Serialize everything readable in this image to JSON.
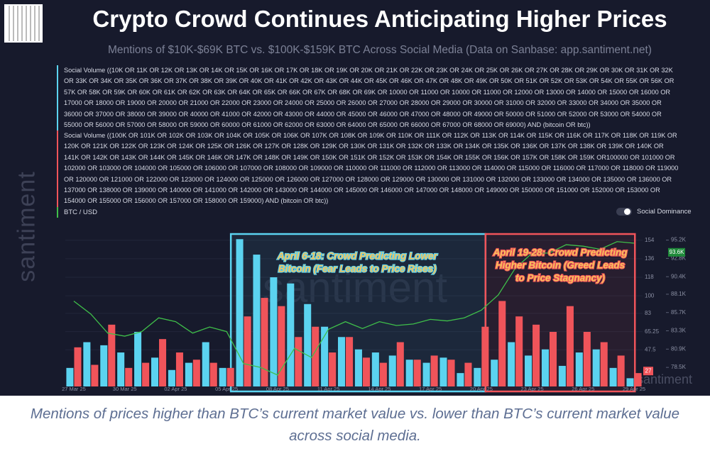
{
  "chart_data": {
    "type": "bar",
    "title": "Crypto Crowd Continues Anticipating Higher Prices",
    "subtitle": "Mentions of $10K-$69K BTC vs. $100K-$159K BTC Across Social Media (Data on Sanbase: app.santiment.net)",
    "brand": "santiment",
    "toggle_label": "Social Dominance",
    "caption": "Mentions of prices higher than BTC’s current market value vs. lower than BTC’s current market value across social media.",
    "annotations": [
      {
        "lines": [
          "April 6-18: Crowd Predicting Lower",
          "Bitcoin (Fear Leads to Price Rises)"
        ],
        "color": "#5bd3f0"
      },
      {
        "lines": [
          "April 19-28: Crowd Predicting",
          "Higher Bitcoin (Greed Leads",
          "to Price Stagnancy)"
        ],
        "color": "#f0545a"
      }
    ],
    "categories": [
      "27 Mar 25",
      null,
      null,
      "30 Mar 25",
      null,
      null,
      "02 Apr 25",
      null,
      null,
      "05 Apr 25",
      null,
      null,
      "08 Apr 25",
      null,
      null,
      "11 Apr 25",
      null,
      null,
      "14 Apr 25",
      null,
      null,
      "17 Apr 25",
      null,
      null,
      "20 Apr 25",
      null,
      null,
      "23 Apr 25",
      null,
      null,
      "26 Apr 25",
      null,
      null,
      "29 Apr 25"
    ],
    "series": [
      {
        "name": "Social Volume ((10K OR 11K OR 12K OR 13K OR 14K OR 15K OR 16K OR 17K OR 18K OR 19K OR 20K OR 21K OR 22K OR 23K OR 24K OR 25K OR 26K OR 27K OR 28K OR 29K OR 30K OR 31K OR 32K OR 33K OR 34K OR 35K OR 36K OR 37K OR 38K OR 39K OR 40K OR 41K OR 42K OR 43K OR 44K OR 45K OR 46K OR 47K OR 48K OR 49K OR 50K OR 51K OR 52K OR 53K OR 54K OR 55K OR 56K OR 57K OR 58K OR 59K OR 60K OR 61K OR 62K OR 63K OR 64K OR 65K OR 66K OR 67K OR 68K OR 69K OR 10000 OR 11000 OR 10000 OR 11000 OR 12000 OR 13000 OR 14000 OR 15000 OR 16000 OR 17000 OR 18000 OR 19000 OR 20000 OR 21000 OR 22000 OR 23000 OR 24000 OR 25000 OR 26000 OR 27000 OR 28000 OR 29000 OR 30000 OR 31000 OR 32000 OR 33000 OR 34000 OR 35000 OR 36000 OR 37000 OR 38000 OR 39000 OR 40000 OR 41000 OR 42000 OR 43000 OR 44000 OR 45000 OR 46000 OR 47000 OR 48000 OR 49000 OR 50000 OR 51000 OR 52000 OR 53000 OR 54000 OR 55000 OR 56000 OR 57000 OR 58000 OR 59000 OR 60000 OR 61000 OR 62000 OR 63000 OR 64000 OR 65000 OR 66000 OR 67000 OR 68000 OR 69000) AND (bitcoin OR btc))",
        "color": "#5bd3f0",
        "values": [
          30,
          55,
          52,
          45,
          65,
          40,
          28,
          35,
          55,
          30,
          155,
          140,
          118,
          112,
          92,
          70,
          60,
          48,
          45,
          42,
          38,
          35,
          40,
          25,
          30,
          38,
          55,
          42,
          48,
          32,
          45,
          48,
          30,
          20
        ]
      },
      {
        "name": "Social Volume ((100K OR 101K OR 102K OR 103K OR 104K OR 105K OR 106K OR 107K OR 108K OR 109K OR 110K OR 111K OR 112K OR 113K OR 114K OR 115K OR 116K OR 117K OR 118K OR 119K OR 120K OR 121K OR 122K OR 123K OR 124K OR 125K OR 126K OR 127K OR 128K OR 129K OR 130K OR 131K OR 132K OR 133K OR 134K OR 135K OR 136K OR 137K OR 138K OR 139K OR 140K OR 141K OR 142K OR 143K OR 144K OR 145K OR 146K OR 147K OR 148K OR 149K OR 150K OR 151K OR 152K OR 153K OR 154K OR 155K OR 156K OR 157K OR 158K OR 159K OR100000 OR 101000 OR 102000 OR 103000 OR 104000 OR 105000 OR 106000 OR 107000 OR 108000 OR 109000 OR 110000 OR 111000 OR 112000 OR 113000 OR 114000 OR 115000 OR 116000 OR 117000 OR 118000 OR 119000 OR 120000 OR 121000 OR 122000 OR 123000 OR 124000 OR 125000 OR 126000 OR 127000 OR 128000 OR 129000 OR 130000 OR 131000 OR 132000 OR 133000 OR 134000 OR 135000 OR 136000 OR 137000 OR 138000 OR 139000 OR 140000 OR 141000 OR 142000 OR 143000 OR 144000 OR 145000 OR 146000 OR 147000 OR 148000 OR 149000 OR 150000 OR 151000 OR 152000 OR 153000 OR 154000 OR 155000 OR 156000 OR 157000 OR 158000 OR 159000) AND (bitcoin OR btc))",
        "color": "#f0545a",
        "values": [
          50,
          33,
          72,
          30,
          35,
          58,
          45,
          38,
          35,
          30,
          80,
          98,
          90,
          60,
          70,
          45,
          60,
          40,
          35,
          55,
          38,
          42,
          38,
          35,
          70,
          95,
          80,
          72,
          65,
          90,
          65,
          55,
          42,
          25
        ]
      },
      {
        "name": "BTC / USD",
        "color": "#3fbf4a",
        "axis": "y2",
        "values": [
          87200,
          85500,
          83000,
          82600,
          83200,
          85000,
          84500,
          83000,
          83800,
          83200,
          79000,
          78500,
          77500,
          81000,
          79800,
          83500,
          84500,
          83600,
          84500,
          84000,
          84200,
          84800,
          84600,
          85000,
          86000,
          88000,
          91500,
          93500,
          93500,
          94600,
          94400,
          94000,
          95000,
          94800
        ]
      }
    ],
    "ylim": [
      12,
      160
    ],
    "yticks": [
      47.5,
      65.25,
      83,
      100,
      118,
      136,
      154
    ],
    "y_highlight": 27,
    "y2lim": [
      76000,
      96000
    ],
    "y2ticks": [
      {
        "value": 78500,
        "label": "78.5K"
      },
      {
        "value": 80900,
        "label": "80.9K"
      },
      {
        "value": 83300,
        "label": "83.3K"
      },
      {
        "value": 85700,
        "label": "85.7K"
      },
      {
        "value": 88100,
        "label": "88.1K"
      },
      {
        "value": 90400,
        "label": "90.4K"
      },
      {
        "value": 92800,
        "label": "92.8K"
      },
      {
        "value": 95200,
        "label": "95.2K"
      }
    ],
    "y2_highlight": {
      "value": 93600,
      "label": "93.6K"
    },
    "grid": true
  }
}
